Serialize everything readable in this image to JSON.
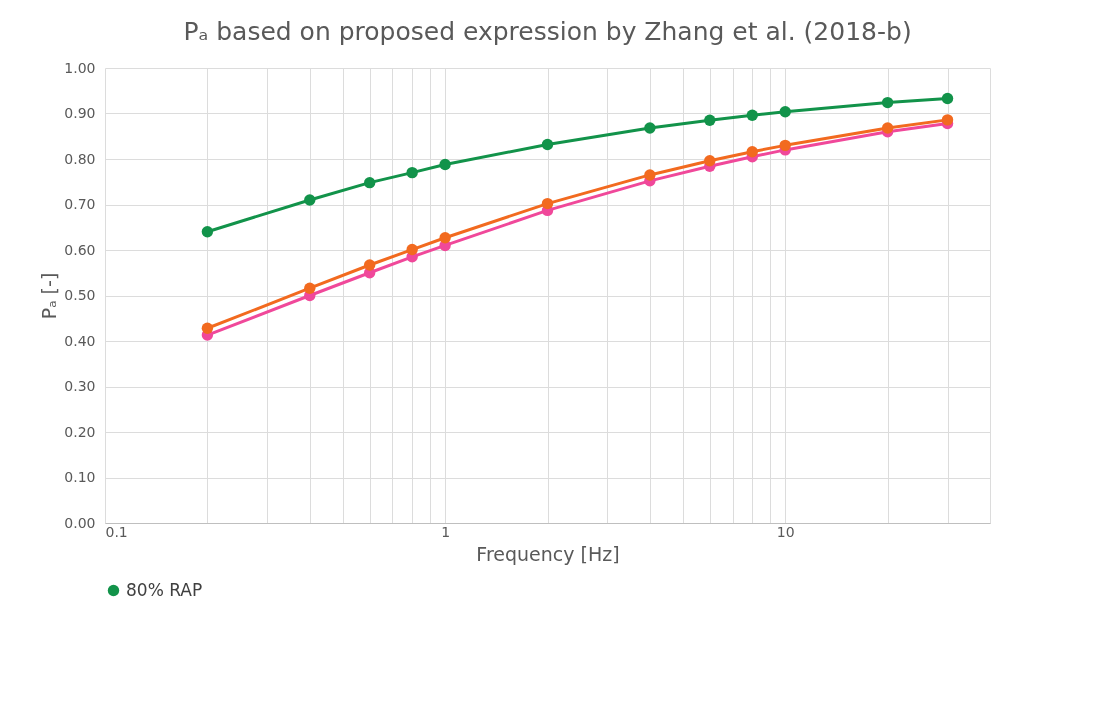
{
  "chart_data": {
    "type": "line",
    "title": "Pₐ based on proposed expression by Zhang et al. (2018-b)",
    "xlabel": "Frequency [Hz]",
    "ylabel": "Pₐ [-]",
    "log": "x",
    "marker": "circle",
    "grid": true,
    "legend": "bottom",
    "x": [
      0.2,
      0.4,
      0.6,
      0.8,
      1,
      2,
      4,
      6,
      8,
      10,
      20,
      30
    ],
    "series": [
      {
        "name": "80% RAP",
        "color": "#12934a",
        "values": [
          0.64,
          0.71,
          0.748,
          0.77,
          0.788,
          0.832,
          0.868,
          0.885,
          0.896,
          0.904,
          0.924,
          0.933
        ]
      },
      {
        "color": "#f0489a",
        "values": [
          0.413,
          0.5,
          0.55,
          0.585,
          0.61,
          0.687,
          0.752,
          0.784,
          0.805,
          0.82,
          0.86,
          0.878
        ]
      },
      {
        "color": "#f26a1f",
        "values": [
          0.428,
          0.516,
          0.567,
          0.601,
          0.627,
          0.702,
          0.765,
          0.796,
          0.816,
          0.83,
          0.868,
          0.886
        ]
      }
    ],
    "xlim": [
      0.1,
      40
    ],
    "xticks": [
      0.1,
      {
        "value": 0.2,
        "label": null
      },
      {
        "value": 0.3,
        "label": null
      },
      {
        "value": 0.4,
        "label": null
      },
      {
        "value": 0.5,
        "label": null
      },
      {
        "value": 0.6,
        "label": null
      },
      {
        "value": 0.7,
        "label": null
      },
      {
        "value": 0.8,
        "label": null
      },
      {
        "value": 0.9,
        "label": null
      },
      1,
      {
        "value": 2,
        "label": null
      },
      {
        "value": 3,
        "label": null
      },
      {
        "value": 4,
        "label": null
      },
      {
        "value": 5,
        "label": null
      },
      {
        "value": 6,
        "label": null
      },
      {
        "value": 7,
        "label": null
      },
      {
        "value": 8,
        "label": null
      },
      {
        "value": 9,
        "label": null
      },
      10,
      {
        "value": 20,
        "label": null
      },
      {
        "value": 30,
        "label": null
      },
      {
        "value": 40,
        "label": null
      }
    ],
    "ylim": [
      0,
      1
    ],
    "yticks": [
      {
        "value": 0,
        "label": "0.00"
      },
      {
        "value": 0.1,
        "label": "0.10"
      },
      {
        "value": 0.2,
        "label": "0.20"
      },
      {
        "value": 0.3,
        "label": "0.30"
      },
      {
        "value": 0.4,
        "label": "0.40"
      },
      {
        "value": 0.5,
        "label": "0.50"
      },
      {
        "value": 0.6,
        "label": "0.60"
      },
      {
        "value": 0.7,
        "label": "0.70"
      },
      {
        "value": 0.8,
        "label": "0.80"
      },
      {
        "value": 0.9,
        "label": "0.90"
      },
      {
        "value": 1,
        "label": "1.00"
      }
    ]
  }
}
